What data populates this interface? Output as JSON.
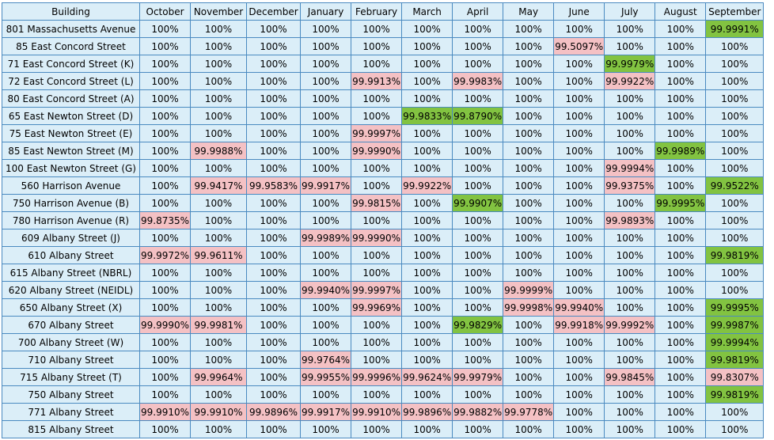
{
  "table": {
    "headers": [
      "Building",
      "October",
      "November",
      "December",
      "January",
      "February",
      "March",
      "April",
      "May",
      "June",
      "July",
      "August",
      "September"
    ],
    "colors": {
      "pink": "#f4c1c4",
      "green": "#82c341",
      "cell": "#dbeef8",
      "border": "#4a8ac0"
    },
    "rows": [
      {
        "building": "801 Massachusetts Avenue",
        "values": [
          "100%",
          "100%",
          "100%",
          "100%",
          "100%",
          "100%",
          "100%",
          "100%",
          "100%",
          "100%",
          "100%",
          "99.9991%"
        ],
        "hl": {
          "11": "green"
        }
      },
      {
        "building": "85 East Concord Street",
        "values": [
          "100%",
          "100%",
          "100%",
          "100%",
          "100%",
          "100%",
          "100%",
          "100%",
          "99.5097%",
          "100%",
          "100%",
          "100%"
        ],
        "hl": {
          "8": "pink"
        }
      },
      {
        "building": "71 East Concord Street (K)",
        "values": [
          "100%",
          "100%",
          "100%",
          "100%",
          "100%",
          "100%",
          "100%",
          "100%",
          "100%",
          "99.9979%",
          "100%",
          "100%"
        ],
        "hl": {
          "9": "green"
        }
      },
      {
        "building": "72 East Concord Street (L)",
        "values": [
          "100%",
          "100%",
          "100%",
          "100%",
          "99.9913%",
          "100%",
          "99.9983%",
          "100%",
          "100%",
          "99.9922%",
          "100%",
          "100%"
        ],
        "hl": {
          "4": "pink",
          "6": "pink",
          "9": "pink"
        }
      },
      {
        "building": "80 East Concord Street (A)",
        "values": [
          "100%",
          "100%",
          "100%",
          "100%",
          "100%",
          "100%",
          "100%",
          "100%",
          "100%",
          "100%",
          "100%",
          "100%"
        ],
        "hl": {}
      },
      {
        "building": "65 East Newton Street (D)",
        "values": [
          "100%",
          "100%",
          "100%",
          "100%",
          "100%",
          "99.9833%",
          "99.8790%",
          "100%",
          "100%",
          "100%",
          "100%",
          "100%"
        ],
        "hl": {
          "5": "green",
          "6": "green"
        }
      },
      {
        "building": "75 East Newton Street (E)",
        "values": [
          "100%",
          "100%",
          "100%",
          "100%",
          "99.9997%",
          "100%",
          "100%",
          "100%",
          "100%",
          "100%",
          "100%",
          "100%"
        ],
        "hl": {
          "4": "pink"
        }
      },
      {
        "building": "85 East Newton Street (M)",
        "values": [
          "100%",
          "99.9988%",
          "100%",
          "100%",
          "99.9990%",
          "100%",
          "100%",
          "100%",
          "100%",
          "100%",
          "99.9989%",
          "100%"
        ],
        "hl": {
          "1": "pink",
          "4": "pink",
          "10": "green"
        }
      },
      {
        "building": "100 East Newton Street (G)",
        "values": [
          "100%",
          "100%",
          "100%",
          "100%",
          "100%",
          "100%",
          "100%",
          "100%",
          "100%",
          "99.9994%",
          "100%",
          "100%"
        ],
        "hl": {
          "9": "pink"
        }
      },
      {
        "building": "560 Harrison Avenue",
        "values": [
          "100%",
          "99.9417%",
          "99.9583%",
          "99.9917%",
          "100%",
          "99.9922%",
          "100%",
          "100%",
          "100%",
          "99.9375%",
          "100%",
          "99.9522%"
        ],
        "hl": {
          "1": "pink",
          "2": "pink",
          "3": "pink",
          "5": "pink",
          "9": "pink",
          "11": "green"
        }
      },
      {
        "building": "750 Harrison Avenue (B)",
        "values": [
          "100%",
          "100%",
          "100%",
          "100%",
          "99.9815%",
          "100%",
          "99.9907%",
          "100%",
          "100%",
          "100%",
          "99.9995%",
          "100%"
        ],
        "hl": {
          "4": "pink",
          "6": "green",
          "10": "green"
        }
      },
      {
        "building": "780 Harrison Avenue (R)",
        "values": [
          "99.8735%",
          "100%",
          "100%",
          "100%",
          "100%",
          "100%",
          "100%",
          "100%",
          "100%",
          "99.9893%",
          "100%",
          "100%"
        ],
        "hl": {
          "0": "pink",
          "9": "pink"
        }
      },
      {
        "building": "609 Albany Street (J)",
        "values": [
          "100%",
          "100%",
          "100%",
          "99.9989%",
          "99.9990%",
          "100%",
          "100%",
          "100%",
          "100%",
          "100%",
          "100%",
          "100%"
        ],
        "hl": {
          "3": "pink",
          "4": "pink"
        }
      },
      {
        "building": "610 Albany Street",
        "values": [
          "99.9972%",
          "99.9611%",
          "100%",
          "100%",
          "100%",
          "100%",
          "100%",
          "100%",
          "100%",
          "100%",
          "100%",
          "99.9819%"
        ],
        "hl": {
          "0": "pink",
          "1": "pink",
          "11": "green"
        }
      },
      {
        "building": "615 Albany Street (NBRL)",
        "values": [
          "100%",
          "100%",
          "100%",
          "100%",
          "100%",
          "100%",
          "100%",
          "100%",
          "100%",
          "100%",
          "100%",
          "100%"
        ],
        "hl": {}
      },
      {
        "building": "620 Albany Street (NEIDL)",
        "values": [
          "100%",
          "100%",
          "100%",
          "99.9940%",
          "99.9997%",
          "100%",
          "100%",
          "99.9999%",
          "100%",
          "100%",
          "100%",
          "100%"
        ],
        "hl": {
          "3": "pink",
          "4": "pink",
          "7": "pink"
        }
      },
      {
        "building": "650 Albany Street (X)",
        "values": [
          "100%",
          "100%",
          "100%",
          "100%",
          "99.9969%",
          "100%",
          "100%",
          "99.9998%",
          "99.9940%",
          "100%",
          "100%",
          "99.9995%"
        ],
        "hl": {
          "4": "pink",
          "7": "pink",
          "8": "pink",
          "11": "green"
        }
      },
      {
        "building": "670 Albany Street",
        "values": [
          "99.9990%",
          "99.9981%",
          "100%",
          "100%",
          "100%",
          "100%",
          "99.9829%",
          "100%",
          "99.9918%",
          "99.9992%",
          "100%",
          "99.9987%"
        ],
        "hl": {
          "0": "pink",
          "1": "pink",
          "6": "green",
          "8": "pink",
          "9": "pink",
          "11": "green"
        }
      },
      {
        "building": "700 Albany Street (W)",
        "values": [
          "100%",
          "100%",
          "100%",
          "100%",
          "100%",
          "100%",
          "100%",
          "100%",
          "100%",
          "100%",
          "100%",
          "99.9994%"
        ],
        "hl": {
          "11": "green"
        }
      },
      {
        "building": "710 Albany Street",
        "values": [
          "100%",
          "100%",
          "100%",
          "99.9764%",
          "100%",
          "100%",
          "100%",
          "100%",
          "100%",
          "100%",
          "100%",
          "99.9819%"
        ],
        "hl": {
          "3": "pink",
          "11": "green"
        }
      },
      {
        "building": "715 Albany Street (T)",
        "values": [
          "100%",
          "99.9964%",
          "100%",
          "99.9955%",
          "99.9996%",
          "99.9624%",
          "99.9979%",
          "100%",
          "100%",
          "99.9845%",
          "100%",
          "99.8307%"
        ],
        "hl": {
          "1": "pink",
          "3": "pink",
          "4": "pink",
          "5": "pink",
          "6": "pink",
          "9": "pink",
          "11": "pink"
        }
      },
      {
        "building": "750 Albany Street",
        "values": [
          "100%",
          "100%",
          "100%",
          "100%",
          "100%",
          "100%",
          "100%",
          "100%",
          "100%",
          "100%",
          "100%",
          "99.9819%"
        ],
        "hl": {
          "11": "green"
        }
      },
      {
        "building": "771 Albany Street",
        "values": [
          "99.9910%",
          "99.9910%",
          "99.9896%",
          "99.9917%",
          "99.9910%",
          "99.9896%",
          "99.9882%",
          "99.9778%",
          "100%",
          "100%",
          "100%",
          "100%"
        ],
        "hl": {
          "0": "pink",
          "1": "pink",
          "2": "pink",
          "3": "pink",
          "4": "pink",
          "5": "pink",
          "6": "pink",
          "7": "pink"
        }
      },
      {
        "building": "815 Albany Street",
        "values": [
          "100%",
          "100%",
          "100%",
          "100%",
          "100%",
          "100%",
          "100%",
          "100%",
          "100%",
          "100%",
          "100%",
          "100%"
        ],
        "hl": {}
      }
    ]
  }
}
